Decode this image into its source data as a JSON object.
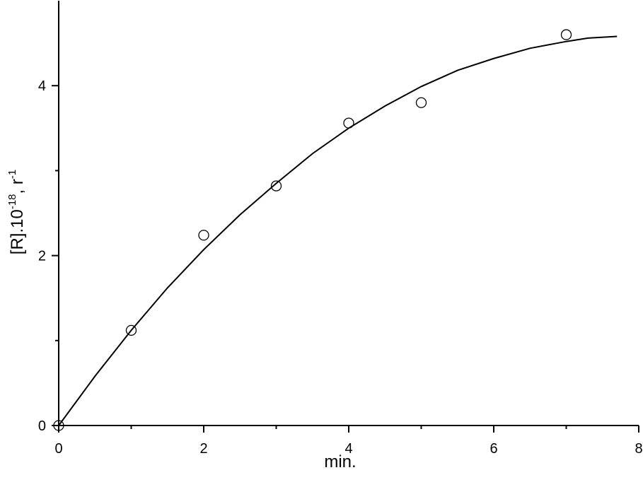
{
  "chart_data": {
    "type": "scatter",
    "x_label": "min.",
    "y_label_parts": [
      "[R].10",
      "-18",
      ", r",
      "-1"
    ],
    "points": {
      "x": [
        0,
        1,
        2,
        3,
        4,
        5,
        7
      ],
      "y": [
        0,
        1.12,
        2.24,
        2.82,
        3.56,
        3.8,
        4.6
      ],
      "color": "#000000"
    },
    "fit": {
      "x": [
        0,
        0.5,
        1,
        1.5,
        2,
        2.5,
        3,
        3.5,
        4,
        4.5,
        5,
        5.5,
        6,
        6.5,
        7,
        7.3,
        7.7
      ],
      "y": [
        0,
        0.58,
        1.12,
        1.62,
        2.07,
        2.48,
        2.85,
        3.2,
        3.5,
        3.76,
        3.99,
        4.18,
        4.32,
        4.44,
        4.52,
        4.56,
        4.58
      ],
      "color": "#000000"
    },
    "xlim": [
      0,
      8
    ],
    "ylim": [
      0,
      5
    ],
    "xticks": [
      0,
      2,
      4,
      6,
      8
    ],
    "yticks": [
      0,
      2,
      4
    ],
    "xminor_ticks": [
      1,
      3,
      5,
      7
    ],
    "yminor_ticks": [
      1,
      3
    ]
  }
}
